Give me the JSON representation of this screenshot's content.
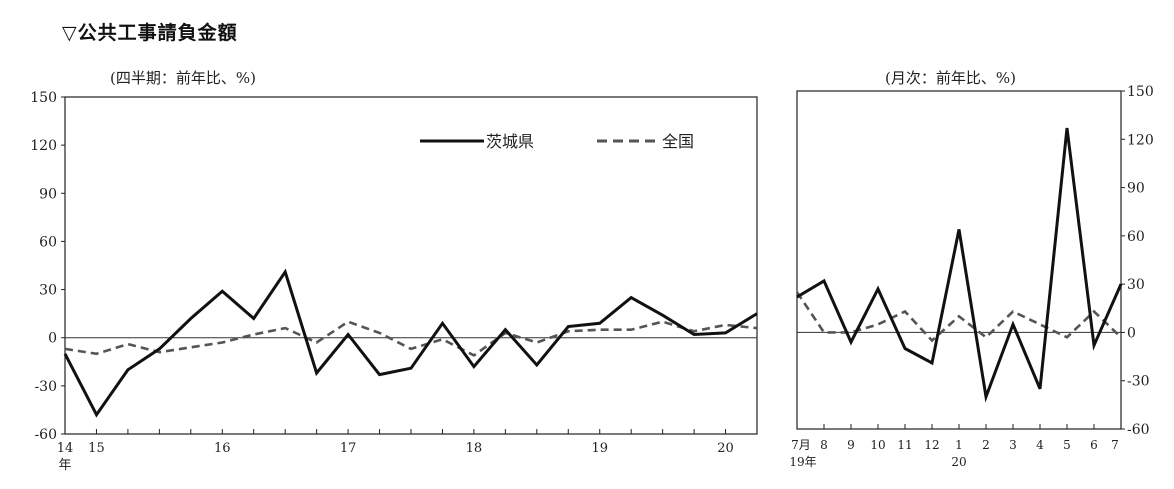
{
  "page_title": "▽公共工事請負金額",
  "chart_data": [
    {
      "type": "line",
      "subtitle": "(四半期：前年比、%)",
      "ylim": [
        -60,
        150
      ],
      "yticks": [
        -60,
        -30,
        0,
        30,
        60,
        90,
        120,
        150
      ],
      "x_tick_labels": [
        {
          "label": "14",
          "i": 0
        },
        {
          "label": "15",
          "i": 1
        },
        {
          "label": "16",
          "i": 5
        },
        {
          "label": "17",
          "i": 9
        },
        {
          "label": "18",
          "i": 13
        },
        {
          "label": "19",
          "i": 17
        },
        {
          "label": "20",
          "i": 21
        }
      ],
      "x_sub_label": "年",
      "legend_position": "top-right",
      "series": [
        {
          "name": "茨城県",
          "style": "solid",
          "color": "#111111",
          "values": [
            -10,
            -48,
            -20,
            -7,
            12,
            29,
            12,
            41,
            -22,
            2,
            -23,
            -19,
            9,
            -18,
            5,
            -17,
            7,
            9,
            25,
            14,
            2,
            3,
            15
          ]
        },
        {
          "name": "全国",
          "style": "dashed",
          "color": "#555555",
          "values": [
            -7,
            -10,
            -4,
            -9,
            -6,
            -3,
            2,
            6,
            -3,
            10,
            3,
            -7,
            -1,
            -11,
            3,
            -3,
            4,
            5,
            5,
            10,
            4,
            8,
            6
          ]
        }
      ]
    },
    {
      "type": "line",
      "subtitle": "(月次：前年比、%)",
      "ylim": [
        -60,
        150
      ],
      "yticks": [
        -60,
        -30,
        0,
        30,
        60,
        90,
        120,
        150
      ],
      "x_tick_labels": [
        "7月",
        "8",
        "9",
        "10",
        "11",
        "12",
        "1",
        "2",
        "3",
        "4",
        "5",
        "6",
        "7"
      ],
      "x_sub_labels": [
        {
          "label": "19年",
          "i": 0
        },
        {
          "label": "20",
          "i": 6
        }
      ],
      "series": [
        {
          "name": "茨城県",
          "style": "solid",
          "color": "#111111",
          "values": [
            22,
            32,
            -6,
            27,
            -10,
            -19,
            64,
            -40,
            5,
            -35,
            127,
            -8,
            30
          ]
        },
        {
          "name": "全国",
          "style": "dashed",
          "color": "#555555",
          "values": [
            25,
            0,
            0,
            5,
            13,
            -5,
            10,
            -3,
            13,
            5,
            -3,
            13,
            -3
          ]
        }
      ]
    }
  ]
}
